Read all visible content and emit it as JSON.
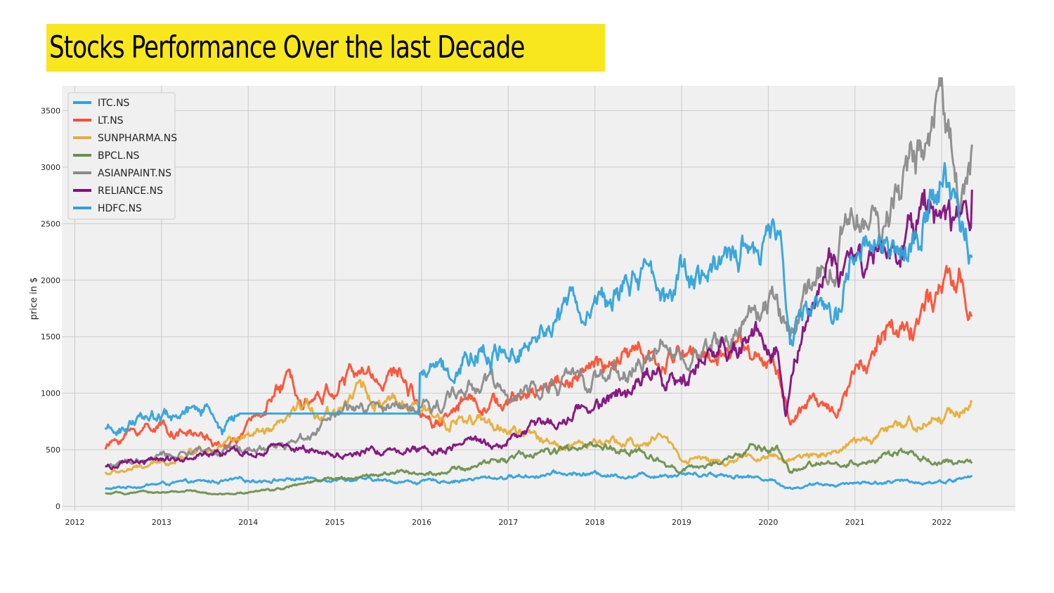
{
  "title": "Stocks Performance Over the last Decade",
  "chart_data": {
    "type": "line",
    "title": "",
    "xlabel": "",
    "ylabel": "price in $",
    "xlim": [
      2011.85,
      2022.85
    ],
    "ylim": [
      -40,
      3720
    ],
    "xticks": [
      "2012",
      "2013",
      "2014",
      "2015",
      "2016",
      "2017",
      "2018",
      "2019",
      "2020",
      "2021",
      "2022"
    ],
    "yticks": [
      "0",
      "500",
      "1000",
      "1500",
      "2000",
      "2500",
      "3000",
      "3500"
    ],
    "grid": true,
    "legend_position": "top-left",
    "background": "#f0f0f0",
    "series": [
      {
        "name": "ITC.NS",
        "color": "#30a2da",
        "x": [
          2012.35,
          2012.8,
          2013.0,
          2013.5,
          2014.0,
          2014.5,
          2015.0,
          2015.5,
          2016.0,
          2016.5,
          2017.0,
          2017.5,
          2018.0,
          2018.5,
          2019.0,
          2019.5,
          2020.0,
          2020.25,
          2020.5,
          2021.0,
          2021.5,
          2022.0,
          2022.35
        ],
        "y": [
          150,
          185,
          200,
          215,
          230,
          240,
          250,
          225,
          215,
          235,
          260,
          285,
          285,
          270,
          295,
          280,
          245,
          160,
          185,
          210,
          215,
          220,
          260
        ]
      },
      {
        "name": "LT.NS",
        "color": "#fc4f30",
        "x": [
          2012.35,
          2012.6,
          2012.9,
          2013.2,
          2013.5,
          2013.7,
          2014.0,
          2014.3,
          2014.5,
          2014.8,
          2015.0,
          2015.2,
          2015.5,
          2015.8,
          2016.0,
          2016.2,
          2016.5,
          2016.8,
          2017.0,
          2017.5,
          2018.0,
          2018.5,
          2018.8,
          2019.0,
          2019.3,
          2019.6,
          2019.9,
          2020.1,
          2020.25,
          2020.5,
          2020.8,
          2021.0,
          2021.3,
          2021.6,
          2022.0,
          2022.2,
          2022.35
        ],
        "y": [
          520,
          640,
          720,
          660,
          620,
          500,
          680,
          1000,
          1100,
          980,
          1050,
          1180,
          1150,
          1150,
          850,
          760,
          980,
          920,
          900,
          1100,
          1200,
          1350,
          1200,
          1400,
          1300,
          1450,
          1350,
          1200,
          750,
          900,
          880,
          1200,
          1500,
          1600,
          1850,
          1950,
          1680
        ]
      },
      {
        "name": "SUNPHARMA.NS",
        "color": "#e5ae38",
        "x": [
          2012.35,
          2012.7,
          2013.0,
          2013.3,
          2013.6,
          2014.0,
          2014.3,
          2014.6,
          2015.0,
          2015.25,
          2015.5,
          2015.8,
          2016.0,
          2016.5,
          2017.0,
          2017.5,
          2018.0,
          2018.5,
          2018.8,
          2019.0,
          2019.5,
          2020.0,
          2020.25,
          2020.5,
          2021.0,
          2021.5,
          2022.0,
          2022.35
        ],
        "y": [
          290,
          330,
          380,
          470,
          560,
          600,
          650,
          850,
          850,
          1080,
          900,
          880,
          820,
          760,
          670,
          560,
          540,
          560,
          620,
          430,
          400,
          440,
          400,
          450,
          560,
          680,
          800,
          920
        ]
      },
      {
        "name": "BPCL.NS",
        "color": "#6d904f",
        "x": [
          2012.35,
          2012.8,
          2013.3,
          2013.6,
          2014.0,
          2014.4,
          2014.8,
          2015.2,
          2015.6,
          2016.0,
          2016.5,
          2016.9,
          2017.3,
          2017.7,
          2018.0,
          2018.5,
          2018.8,
          2019.0,
          2019.5,
          2019.8,
          2020.1,
          2020.25,
          2020.6,
          2021.0,
          2021.5,
          2022.0,
          2022.35
        ],
        "y": [
          110,
          120,
          135,
          100,
          120,
          160,
          220,
          260,
          290,
          300,
          330,
          420,
          470,
          490,
          520,
          470,
          400,
          320,
          380,
          520,
          480,
          300,
          380,
          390,
          470,
          380,
          380
        ]
      },
      {
        "name": "ASIANPAINT.NS",
        "color": "#8b8b8b",
        "x": [
          2012.35,
          2012.7,
          2013.0,
          2013.5,
          2014.0,
          2014.5,
          2014.9,
          2015.2,
          2015.5,
          2015.9,
          2016.2,
          2016.5,
          2016.8,
          2017.0,
          2017.5,
          2018.0,
          2018.5,
          2018.8,
          2019.0,
          2019.5,
          2019.8,
          2020.1,
          2020.25,
          2020.5,
          2020.8,
          2021.0,
          2021.3,
          2021.5,
          2021.8,
          2022.0,
          2022.2,
          2022.35
        ],
        "y": [
          360,
          390,
          440,
          480,
          500,
          560,
          760,
          850,
          850,
          850,
          900,
          1050,
          1150,
          900,
          1100,
          1150,
          1250,
          1400,
          1300,
          1450,
          1750,
          1800,
          1500,
          1900,
          2250,
          2500,
          2450,
          2800,
          3250,
          3500,
          2900,
          3200
        ]
      },
      {
        "name": "RELIANCE.NS",
        "color": "#810f7c",
        "x": [
          2012.35,
          2012.7,
          2013.0,
          2013.5,
          2014.0,
          2014.4,
          2014.8,
          2015.2,
          2015.6,
          2016.0,
          2016.5,
          2016.9,
          2017.3,
          2017.6,
          2018.0,
          2018.4,
          2018.7,
          2019.0,
          2019.3,
          2019.6,
          2019.9,
          2020.1,
          2020.2,
          2020.4,
          2020.7,
          2020.9,
          2021.3,
          2021.5,
          2021.8,
          2022.0,
          2022.15,
          2022.3,
          2022.35
        ],
        "y": [
          350,
          380,
          420,
          440,
          470,
          520,
          490,
          460,
          500,
          520,
          540,
          550,
          700,
          780,
          920,
          1000,
          1250,
          1100,
          1350,
          1350,
          1550,
          1450,
          900,
          1650,
          2150,
          2050,
          2100,
          2100,
          2600,
          2450,
          2300,
          2650,
          2800
        ]
      },
      {
        "name": "HDFC.NS",
        "color": "#30a2da",
        "x": [
          2012.35,
          2012.6,
          2012.9,
          2013.2,
          2013.5,
          2013.7,
          2013.9,
          2014.5,
          2015.0,
          2015.5,
          2015.97,
          2015.98,
          2016.3,
          2016.7,
          2017.0,
          2017.3,
          2017.6,
          2017.9,
          2018.2,
          2018.5,
          2018.8,
          2019.0,
          2019.3,
          2019.6,
          2019.9,
          2020.0,
          2020.15,
          2020.25,
          2020.5,
          2020.8,
          2021.0,
          2021.2,
          2021.5,
          2021.8,
          2022.0,
          2022.2,
          2022.3,
          2022.35
        ],
        "y": [
          660,
          700,
          820,
          780,
          900,
          680,
          820,
          820,
          820,
          820,
          820,
          1200,
          1250,
          1400,
          1350,
          1600,
          1780,
          1700,
          1900,
          2050,
          1750,
          2000,
          1950,
          2250,
          2100,
          2450,
          2250,
          1500,
          1700,
          1650,
          2300,
          2500,
          2400,
          2600,
          2950,
          2450,
          2300,
          2200
        ]
      }
    ]
  }
}
